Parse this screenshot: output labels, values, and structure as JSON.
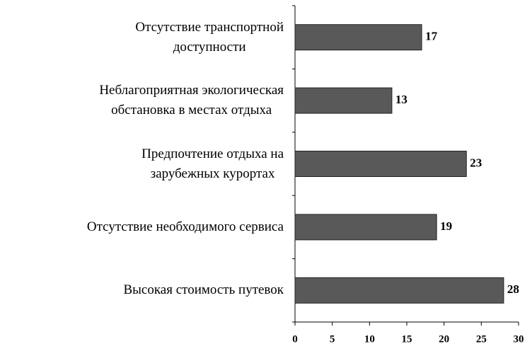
{
  "chart_data": {
    "type": "barh",
    "categories": [
      "Отсутствие транспортной\nдоступности",
      "Неблагоприятная экологическая\nобстановка в местах отдыха",
      "Предпочтение отдыха на\nзарубежных курортах",
      "Отсутствие необходимого сервиса",
      "Высокая стоимость путевок"
    ],
    "values": [
      17,
      13,
      23,
      19,
      28
    ],
    "color": "#595959",
    "xlim": [
      0,
      30
    ],
    "xticks": [
      0,
      5,
      10,
      15,
      20,
      25,
      30
    ]
  }
}
